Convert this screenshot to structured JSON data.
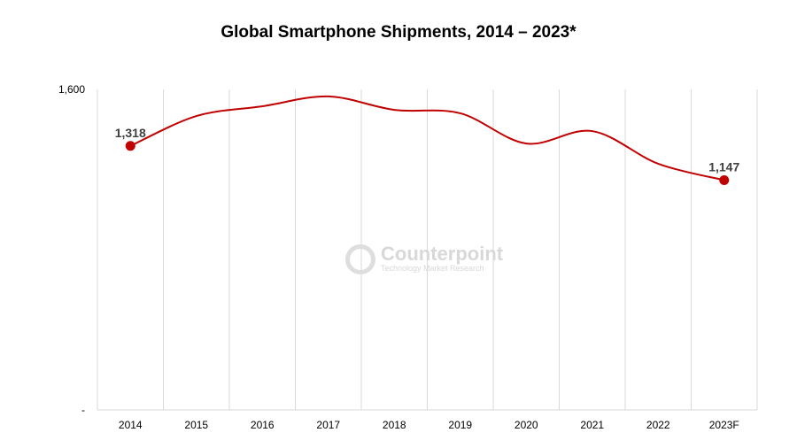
{
  "chart_data": {
    "type": "line",
    "title": "Global Smartphone Shipments, 2014 – 2023*",
    "categories": [
      "2014",
      "2015",
      "2016",
      "2017",
      "2018",
      "2019",
      "2020",
      "2021",
      "2022",
      "2023F"
    ],
    "series": [
      {
        "values": [
          1318,
          1467,
          1516,
          1565,
          1498,
          1481,
          1330,
          1392,
          1229,
          1147
        ]
      }
    ],
    "data_labels": [
      {
        "category": "2014",
        "text": "1,318"
      },
      {
        "category": "2023F",
        "text": "1,147"
      }
    ],
    "y_ticks": [
      "-",
      "1,600"
    ],
    "ylim": [
      0,
      1600
    ],
    "grid": "vertical",
    "line_color": "#c00000"
  },
  "watermark": {
    "brand": "Counterpoint",
    "tagline": "Technology Market Research"
  }
}
